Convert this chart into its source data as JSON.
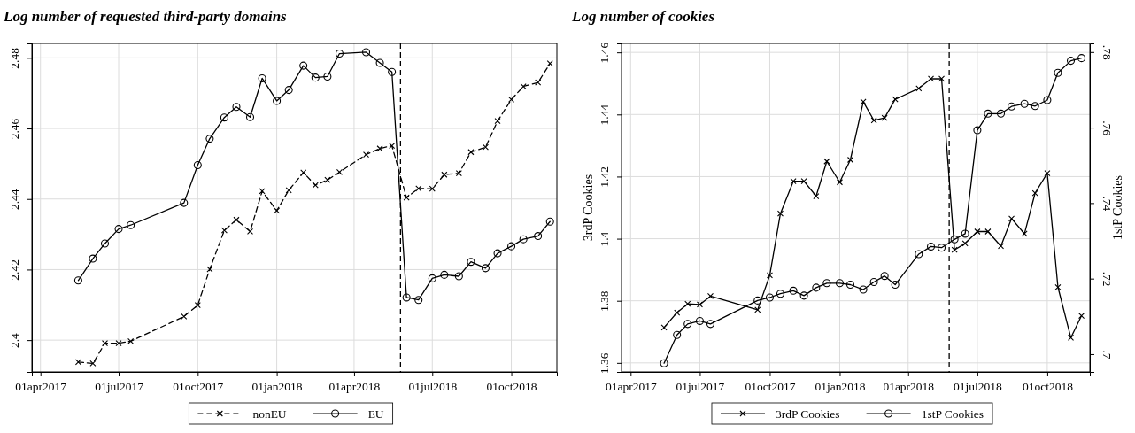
{
  "chart_data": [
    {
      "type": "line",
      "title": "Log number of requested third-party domains",
      "x": [
        "2017-05-15",
        "2017-06-01",
        "2017-06-15",
        "2017-07-01",
        "2017-07-15",
        "2017-09-15",
        "2017-10-01",
        "2017-10-15",
        "2017-11-01",
        "2017-11-15",
        "2017-12-01",
        "2017-12-15",
        "2018-01-01",
        "2018-01-15",
        "2018-02-01",
        "2018-02-15",
        "2018-03-01",
        "2018-03-15",
        "2018-04-15",
        "2018-05-01",
        "2018-05-15",
        "2018-06-01",
        "2018-06-15",
        "2018-07-01",
        "2018-07-15",
        "2018-08-01",
        "2018-08-15",
        "2018-09-01",
        "2018-09-15",
        "2018-10-01",
        "2018-10-15",
        "2018-11-01",
        "2018-11-15"
      ],
      "series": [
        {
          "name": "nonEU",
          "color": "#000000",
          "marker": "cross",
          "line_style": "dashed",
          "values": [
            2.3938,
            2.3934,
            2.3991,
            2.3991,
            2.3997,
            2.4067,
            2.4099,
            2.4201,
            2.4311,
            2.4341,
            2.4308,
            2.4422,
            2.4367,
            2.4425,
            2.4475,
            2.4439,
            2.4454,
            2.4476,
            2.4526,
            2.4543,
            2.4551,
            2.4404,
            2.443,
            2.4429,
            2.4469,
            2.4473,
            2.4533,
            2.4547,
            2.4621,
            2.4682,
            2.4719,
            2.473,
            2.4784
          ]
        },
        {
          "name": "EU",
          "color": "#000000",
          "marker": "circle",
          "line_style": "solid",
          "values": [
            2.4169,
            2.4231,
            2.4274,
            2.4315,
            2.4326,
            2.4389,
            2.4496,
            2.4571,
            2.4631,
            2.4661,
            2.4632,
            2.4742,
            2.4678,
            2.4709,
            2.4778,
            2.4744,
            2.4747,
            2.4812,
            2.4816,
            2.4786,
            2.476,
            2.4121,
            2.4114,
            2.4175,
            2.4185,
            2.4181,
            2.4222,
            2.4204,
            2.4246,
            2.4266,
            2.4286,
            2.4295,
            2.4336
          ]
        }
      ],
      "xlim": [
        "2017-03-22",
        "2018-11-23"
      ],
      "xticks": [
        {
          "value": "2017-04-01",
          "label": "01apr2017"
        },
        {
          "value": "2017-07-01",
          "label": "01jul2017"
        },
        {
          "value": "2017-10-01",
          "label": "01oct2017"
        },
        {
          "value": "2018-01-01",
          "label": "01jan2018"
        },
        {
          "value": "2018-04-01",
          "label": "01apr2018"
        },
        {
          "value": "2018-07-01",
          "label": "01jul2018"
        },
        {
          "value": "2018-10-01",
          "label": "01oct2018"
        }
      ],
      "ylim": [
        2.391,
        2.4841
      ],
      "yticks": [
        {
          "value": 2.4,
          "label": "2.4"
        },
        2.42,
        2.44,
        2.46,
        2.48
      ],
      "ref_lines": [
        {
          "axis": "x",
          "value": "2018-05-25",
          "line_style": "dashed"
        }
      ],
      "grid": true,
      "legend": "bottom"
    },
    {
      "type": "line",
      "title": "Log number of cookies",
      "ylabel": "3rdP Cookies",
      "y2label": "1stP Cookies",
      "x": [
        "2017-05-15",
        "2017-06-01",
        "2017-06-15",
        "2017-07-01",
        "2017-07-15",
        "2017-09-15",
        "2017-10-01",
        "2017-10-15",
        "2017-11-01",
        "2017-11-15",
        "2017-12-01",
        "2017-12-15",
        "2018-01-01",
        "2018-01-15",
        "2018-02-01",
        "2018-02-15",
        "2018-03-01",
        "2018-03-15",
        "2018-04-15",
        "2018-05-01",
        "2018-05-15",
        "2018-06-01",
        "2018-06-15",
        "2018-07-01",
        "2018-07-15",
        "2018-08-01",
        "2018-08-15",
        "2018-09-01",
        "2018-09-15",
        "2018-10-01",
        "2018-10-15",
        "2018-11-01",
        "2018-11-15"
      ],
      "series": [
        {
          "name": "3rdP Cookies",
          "color": "#000000",
          "marker": "cross",
          "line_style": "solid",
          "values": [
            1.3714,
            1.3762,
            1.379,
            1.3788,
            1.3815,
            1.3771,
            1.3882,
            1.4081,
            1.4185,
            1.4185,
            1.4137,
            1.4249,
            1.4182,
            1.4254,
            1.4441,
            1.4381,
            1.4389,
            1.4449,
            1.4484,
            1.4515,
            1.4515,
            1.3964,
            1.3985,
            1.4023,
            1.4023,
            1.3976,
            1.4065,
            1.4016,
            1.4147,
            1.4211,
            1.3844,
            1.3681,
            1.3752
          ]
        },
        {
          "name": "1stP Cookies",
          "color": "#000000",
          "marker": "circle",
          "line_style": "solid",
          "axis": "y2",
          "values": [
            0.6976,
            0.7051,
            0.708,
            0.7088,
            0.708,
            0.7142,
            0.715,
            0.716,
            0.7168,
            0.7155,
            0.7176,
            0.7188,
            0.7188,
            0.7184,
            0.7171,
            0.7191,
            0.7207,
            0.7184,
            0.7265,
            0.7285,
            0.7282,
            0.7304,
            0.7319,
            0.7593,
            0.7637,
            0.7637,
            0.7656,
            0.7663,
            0.7657,
            0.7673,
            0.7745,
            0.7777,
            0.7784
          ]
        }
      ],
      "xlim": [
        "2017-03-20",
        "2018-11-26"
      ],
      "xticks": [
        {
          "value": "2017-04-01",
          "label": "01apr2017"
        },
        {
          "value": "2017-07-01",
          "label": "01jul2017"
        },
        {
          "value": "2017-10-01",
          "label": "01oct2017"
        },
        {
          "value": "2018-01-01",
          "label": "01jan2018"
        },
        {
          "value": "2018-04-01",
          "label": "01apr2018"
        },
        {
          "value": "2018-07-01",
          "label": "01jul2018"
        },
        {
          "value": "2018-10-01",
          "label": "01oct2018"
        }
      ],
      "ylim": [
        1.3571,
        1.4629
      ],
      "yticks": [
        1.36,
        1.38,
        {
          "value": 1.4,
          "label": "1.4"
        },
        1.42,
        1.44,
        1.46
      ],
      "y2lim": [
        0.6953,
        0.7823
      ],
      "y2ticks": [
        {
          "value": 0.7,
          "label": ".7"
        },
        {
          "value": 0.72,
          "label": ".72"
        },
        {
          "value": 0.74,
          "label": ".74"
        },
        {
          "value": 0.76,
          "label": ".76"
        },
        {
          "value": 0.78,
          "label": ".78"
        }
      ],
      "ref_lines": [
        {
          "axis": "x",
          "value": "2018-05-25",
          "line_style": "dashed"
        }
      ],
      "grid": true,
      "legend": "bottom"
    }
  ]
}
